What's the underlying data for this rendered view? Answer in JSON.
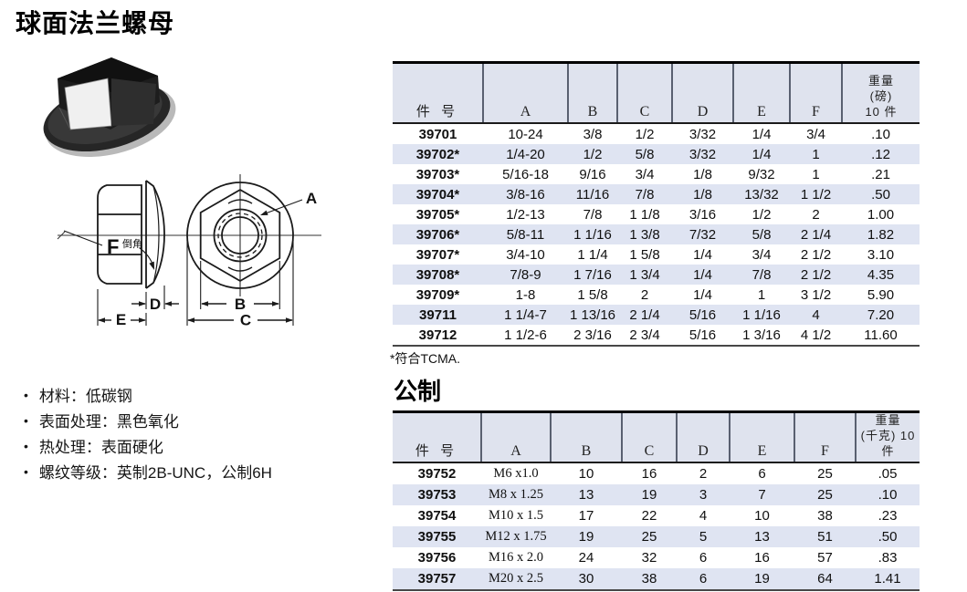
{
  "title": "球面法兰螺母",
  "specs": [
    "材料：低碳钢",
    "表面处理：黑色氧化",
    "热处理：表面硬化",
    "螺纹等级：英制2B-UNC，公制6H"
  ],
  "diagram": {
    "dim_a": "A",
    "dim_b": "B",
    "dim_c": "C",
    "dim_d": "D",
    "dim_e": "E",
    "dim_f": "F",
    "chamfer": "倒角"
  },
  "imperial_table": {
    "part_header": "件 号",
    "dim_headers": [
      "A",
      "B",
      "C",
      "D",
      "E",
      "F"
    ],
    "weight_header_lines": [
      "重量",
      "(磅)",
      "10 件"
    ],
    "rows": [
      [
        "39701",
        "10-24",
        "3/8",
        "1/2",
        "3/32",
        "1/4",
        "3/4",
        ".10"
      ],
      [
        "39702*",
        "1/4-20",
        "1/2",
        "5/8",
        "3/32",
        "1/4",
        "1",
        ".12"
      ],
      [
        "39703*",
        "5/16-18",
        "9/16",
        "3/4",
        "1/8",
        "9/32",
        "1",
        ".21"
      ],
      [
        "39704*",
        "3/8-16",
        "11/16",
        "7/8",
        "1/8",
        "13/32",
        "1 1/2",
        ".50"
      ],
      [
        "39705*",
        "1/2-13",
        "7/8",
        "1 1/8",
        "3/16",
        "1/2",
        "2",
        "1.00"
      ],
      [
        "39706*",
        "5/8-11",
        "1 1/16",
        "1 3/8",
        "7/32",
        "5/8",
        "2 1/4",
        "1.82"
      ],
      [
        "39707*",
        "3/4-10",
        "1 1/4",
        "1 5/8",
        "1/4",
        "3/4",
        "2 1/2",
        "3.10"
      ],
      [
        "39708*",
        "7/8-9",
        "1 7/16",
        "1 3/4",
        "1/4",
        "7/8",
        "2 1/2",
        "4.35"
      ],
      [
        "39709*",
        "1-8",
        "1 5/8",
        "2",
        "1/4",
        "1",
        "3 1/2",
        "5.90"
      ],
      [
        "39711",
        "1 1/4-7",
        "1 13/16",
        "2 1/4",
        "5/16",
        "1 1/16",
        "4",
        "7.20"
      ],
      [
        "39712",
        "1 1/2-6",
        "2 3/16",
        "2 3/4",
        "5/16",
        "1 3/16",
        "4 1/2",
        "11.60"
      ]
    ],
    "footnote": "*符合TCMA."
  },
  "metric_table": {
    "heading": "公制",
    "part_header": "件 号",
    "dim_headers": [
      "A",
      "B",
      "C",
      "D",
      "E",
      "F"
    ],
    "weight_header_lines": [
      "重量",
      "(千克) 10 件"
    ],
    "rows": [
      [
        "39752",
        "M6 x1.0",
        "10",
        "16",
        "2",
        "6",
        "25",
        ".05"
      ],
      [
        "39753",
        "M8 x 1.25",
        "13",
        "19",
        "3",
        "7",
        "25",
        ".10"
      ],
      [
        "39754",
        "M10 x 1.5",
        "17",
        "22",
        "4",
        "10",
        "38",
        ".23"
      ],
      [
        "39755",
        "M12 x 1.75",
        "19",
        "25",
        "5",
        "13",
        "51",
        ".50"
      ],
      [
        "39756",
        "M16 x 2.0",
        "24",
        "32",
        "6",
        "16",
        "57",
        ".83"
      ],
      [
        "39757",
        "M20 x 2.5",
        "30",
        "38",
        "6",
        "19",
        "64",
        "1.41"
      ]
    ]
  },
  "colors": {
    "header_bg": "#dfe3ee",
    "alt_row_bg": "#dfe4f2",
    "line_dark": "#1b1b1b"
  }
}
